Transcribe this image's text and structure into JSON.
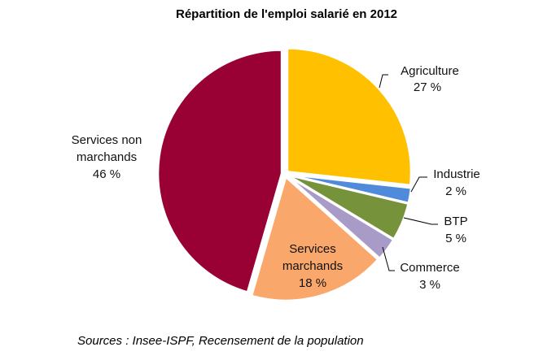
{
  "chart_data": {
    "type": "pie",
    "title": "Répartition de l'emploi salarié en 2012",
    "slices": [
      {
        "label": "Agriculture",
        "value": 27,
        "value_label": "27 %",
        "color": "#FFC000"
      },
      {
        "label": "Industrie",
        "value": 2,
        "value_label": "2 %",
        "color": "#4F8ADB"
      },
      {
        "label": "BTP",
        "value": 5,
        "value_label": "5 %",
        "color": "#76933C"
      },
      {
        "label": "Commerce",
        "value": 3,
        "value_label": "3 %",
        "color": "#A99BC8"
      },
      {
        "label": "Services marchands",
        "value": 18,
        "value_label": "18 %",
        "color": "#F9A76B"
      },
      {
        "label": "Services non marchands",
        "value": 46,
        "value_label": "46 %",
        "color": "#990033"
      }
    ],
    "source": "Sources : Insee-ISPF, Recensement de la population"
  }
}
